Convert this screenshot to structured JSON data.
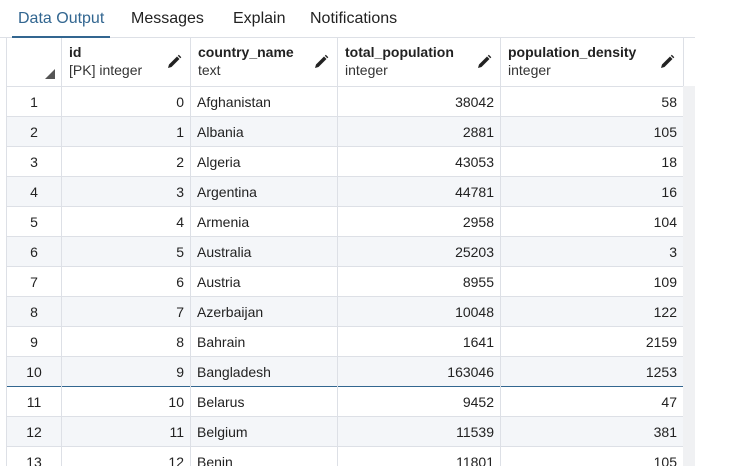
{
  "tabs": [
    {
      "label": "Data Output",
      "active": true
    },
    {
      "label": "Messages",
      "active": false
    },
    {
      "label": "Explain",
      "active": false
    },
    {
      "label": "Notifications",
      "active": false
    }
  ],
  "columns": [
    {
      "name": "id",
      "type": "[PK] integer"
    },
    {
      "name": "country_name",
      "type": "text"
    },
    {
      "name": "total_population",
      "type": "integer"
    },
    {
      "name": "population_density",
      "type": "integer"
    }
  ],
  "rows": [
    {
      "rownum": "1",
      "id": "0",
      "country_name": "Afghanistan",
      "total_population": "38042",
      "population_density": "58"
    },
    {
      "rownum": "2",
      "id": "1",
      "country_name": "Albania",
      "total_population": "2881",
      "population_density": "105"
    },
    {
      "rownum": "3",
      "id": "2",
      "country_name": "Algeria",
      "total_population": "43053",
      "population_density": "18"
    },
    {
      "rownum": "4",
      "id": "3",
      "country_name": "Argentina",
      "total_population": "44781",
      "population_density": "16"
    },
    {
      "rownum": "5",
      "id": "4",
      "country_name": "Armenia",
      "total_population": "2958",
      "population_density": "104"
    },
    {
      "rownum": "6",
      "id": "5",
      "country_name": "Australia",
      "total_population": "25203",
      "population_density": "3"
    },
    {
      "rownum": "7",
      "id": "6",
      "country_name": "Austria",
      "total_population": "8955",
      "population_density": "109"
    },
    {
      "rownum": "8",
      "id": "7",
      "country_name": "Azerbaijan",
      "total_population": "10048",
      "population_density": "122"
    },
    {
      "rownum": "9",
      "id": "8",
      "country_name": "Bahrain",
      "total_population": "1641",
      "population_density": "2159"
    },
    {
      "rownum": "10",
      "id": "9",
      "country_name": "Bangladesh",
      "total_population": "163046",
      "population_density": "1253"
    },
    {
      "rownum": "11",
      "id": "10",
      "country_name": "Belarus",
      "total_population": "9452",
      "population_density": "47"
    },
    {
      "rownum": "12",
      "id": "11",
      "country_name": "Belgium",
      "total_population": "11539",
      "population_density": "381"
    },
    {
      "rownum": "13",
      "id": "12",
      "country_name": "Benin",
      "total_population": "11801",
      "population_density": "105"
    }
  ],
  "colors": {
    "accent": "#326690",
    "grid_line": "#dde0e6",
    "alt_row": "#f4f6f9"
  },
  "icons": {
    "column_edit": "pencil-icon",
    "select_all": "corner-triangle-icon"
  }
}
